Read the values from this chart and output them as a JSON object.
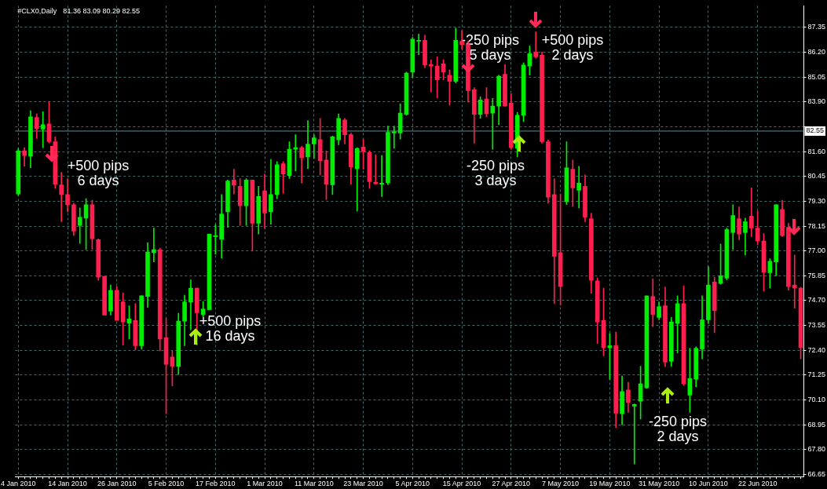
{
  "chart_data": {
    "type": "candlestick",
    "title": "#CLX0,Daily",
    "subtitle": "81.36 83.09 80.29 82.55",
    "categories": [
      "4 Jan 2010",
      null,
      null,
      null,
      null,
      null,
      null,
      null,
      "14 Jan 2010",
      null,
      null,
      null,
      null,
      null,
      null,
      null,
      "26 Jan 2010",
      null,
      null,
      null,
      null,
      null,
      null,
      null,
      "5 Feb 2010",
      null,
      null,
      null,
      null,
      null,
      null,
      null,
      "17 Feb 2010",
      null,
      null,
      null,
      null,
      null,
      null,
      null,
      "1 Mar 2010",
      null,
      null,
      null,
      null,
      null,
      null,
      null,
      "11 Mar 2010",
      null,
      null,
      null,
      null,
      null,
      null,
      null,
      "23 Mar 2010",
      null,
      null,
      null,
      null,
      null,
      null,
      null,
      "5 Apr 2010",
      null,
      null,
      null,
      null,
      null,
      null,
      null,
      "15 Apr 2010",
      null,
      null,
      null,
      null,
      null,
      null,
      null,
      "27 Apr 2010",
      null,
      null,
      null,
      null,
      null,
      null,
      null,
      "7 May 2010",
      null,
      null,
      null,
      null,
      null,
      null,
      null,
      "19 May 2010",
      null,
      null,
      null,
      null,
      null,
      null,
      null,
      "31 May 2010",
      null,
      null,
      null,
      null,
      null,
      null,
      null,
      "10 Jun 2010",
      null,
      null,
      null,
      null,
      null,
      null,
      null,
      "22 Jun 2010",
      null,
      null,
      null,
      null,
      null,
      null,
      null
    ],
    "ohlc": [
      [
        79.64,
        81.75,
        79.56,
        81.64
      ],
      [
        81.64,
        81.78,
        80.92,
        81.42
      ],
      [
        81.39,
        83.49,
        80.85,
        83.21
      ],
      [
        83.18,
        83.35,
        82.21,
        82.66
      ],
      [
        82.64,
        83.45,
        81.78,
        82.85
      ],
      [
        82.88,
        83.92,
        82.0,
        82.06
      ],
      [
        82.06,
        82.28,
        79.89,
        80.09
      ],
      [
        80.06,
        80.64,
        78.35,
        79.61
      ],
      [
        79.61,
        80.35,
        78.81,
        79.14
      ],
      [
        79.14,
        79.21,
        77.71,
        77.92
      ],
      [
        78.18,
        78.99,
        77.35,
        78.56
      ],
      [
        78.52,
        79.42,
        77.06,
        79.14
      ],
      [
        79.14,
        79.35,
        77.06,
        77.56
      ],
      [
        77.52,
        77.56,
        75.64,
        75.78
      ],
      [
        75.82,
        75.82,
        74.03,
        74.03
      ],
      [
        74.21,
        75.42,
        74.03,
        75.18
      ],
      [
        75.18,
        75.35,
        73.78,
        73.78
      ],
      [
        74.64,
        75.06,
        72.64,
        73.71
      ],
      [
        73.66,
        74.46,
        72.92,
        73.85
      ],
      [
        73.78,
        74.56,
        72.42,
        72.61
      ],
      [
        72.61,
        74.92,
        72.46,
        74.92
      ],
      [
        74.89,
        77.38,
        74.38,
        76.95
      ],
      [
        76.92,
        78.06,
        76.49,
        77.06
      ],
      [
        77.06,
        77.13,
        72.38,
        72.92
      ],
      [
        72.99,
        73.89,
        69.46,
        71.75
      ],
      [
        72.09,
        72.38,
        70.75,
        71.66
      ],
      [
        71.66,
        74.11,
        71.28,
        73.75
      ],
      [
        73.75,
        74.95,
        72.61,
        74.64
      ],
      [
        74.64,
        75.66,
        73.35,
        75.28
      ],
      [
        75.28,
        75.28,
        72.64,
        74.14
      ],
      [
        74.06,
        74.66,
        73.95,
        74.31
      ],
      [
        74.28,
        77.78,
        74.28,
        77.78
      ],
      [
        77.66,
        78.21,
        76.85,
        77.71
      ],
      [
        77.54,
        79.61,
        76.66,
        78.71
      ],
      [
        78.81,
        80.28,
        78.09,
        80.24
      ],
      [
        80.28,
        80.78,
        79.64,
        80.04
      ],
      [
        79.99,
        80.35,
        78.18,
        79.09
      ],
      [
        79.09,
        80.35,
        78.18,
        80.28
      ],
      [
        80.28,
        80.28,
        76.99,
        78.28
      ],
      [
        78.28,
        79.99,
        77.78,
        79.52
      ],
      [
        79.78,
        80.56,
        78.04,
        78.75
      ],
      [
        78.81,
        81.24,
        78.24,
        79.61
      ],
      [
        79.61,
        81.14,
        79.42,
        80.99
      ],
      [
        81.04,
        81.14,
        79.66,
        80.56
      ],
      [
        80.49,
        82.06,
        80.35,
        81.71
      ],
      [
        81.71,
        82.38,
        80.71,
        81.78
      ],
      [
        81.78,
        81.85,
        80.14,
        81.32
      ],
      [
        81.35,
        83.04,
        80.81,
        81.95
      ],
      [
        81.95,
        82.38,
        81.28,
        82.24
      ],
      [
        82.16,
        83.14,
        80.52,
        81.18
      ],
      [
        81.21,
        81.64,
        79.38,
        80.09
      ],
      [
        80.06,
        82.32,
        79.61,
        82.28
      ],
      [
        82.14,
        83.35,
        81.92,
        83.14
      ],
      [
        83.06,
        83.14,
        81.95,
        82.38
      ],
      [
        82.38,
        82.46,
        80.09,
        80.89
      ],
      [
        80.81,
        81.78,
        78.85,
        81.75
      ],
      [
        81.81,
        82.18,
        80.78,
        81.61
      ],
      [
        81.56,
        81.64,
        79.89,
        80.21
      ],
      [
        80.18,
        81.46,
        80.09,
        80.11
      ],
      [
        80.09,
        81.42,
        79.52,
        80.14
      ],
      [
        80.15,
        82.78,
        80.06,
        82.49
      ],
      [
        82.46,
        82.78,
        81.75,
        82.52
      ],
      [
        82.46,
        83.81,
        82.18,
        83.38
      ],
      [
        83.32,
        85.28,
        83.28,
        85.24
      ],
      [
        85.28,
        86.89,
        85.04,
        86.81
      ],
      [
        86.71,
        87.04,
        86.09,
        86.75
      ],
      [
        86.75,
        86.99,
        85.49,
        85.61
      ],
      [
        85.64,
        85.85,
        84.35,
        85.56
      ],
      [
        85.56,
        85.99,
        84.09,
        84.92
      ],
      [
        85.66,
        85.85,
        84.92,
        85.28
      ],
      [
        85.14,
        85.38,
        83.75,
        84.85
      ],
      [
        84.85,
        87.32,
        84.78,
        86.75
      ],
      [
        86.71,
        87.21,
        86.35,
        86.56
      ],
      [
        86.56,
        86.71,
        83.89,
        84.42
      ],
      [
        84.46,
        84.56,
        81.99,
        83.32
      ],
      [
        83.32,
        84.14,
        83.14,
        83.99
      ],
      [
        84.04,
        84.56,
        83.21,
        83.35
      ],
      [
        83.38,
        84.06,
        81.71,
        83.71
      ],
      [
        83.71,
        85.14,
        82.85,
        85.09
      ],
      [
        85.18,
        85.64,
        83.71,
        83.71
      ],
      [
        83.85,
        84.28,
        81.71,
        81.78
      ],
      [
        81.75,
        83.42,
        81.35,
        83.28
      ],
      [
        83.28,
        85.71,
        83.0,
        85.61
      ],
      [
        85.56,
        86.49,
        85.14,
        86.14
      ],
      [
        86.21,
        87.14,
        85.92,
        85.99
      ],
      [
        86.06,
        86.21,
        81.99,
        82.06
      ],
      [
        82.06,
        82.14,
        79.21,
        79.49
      ],
      [
        79.61,
        80.35,
        74.56,
        76.75
      ],
      [
        76.92,
        79.64,
        74.49,
        75.35
      ],
      [
        79.28,
        82.06,
        79.14,
        80.85
      ],
      [
        80.78,
        81.21,
        79.06,
        79.92
      ],
      [
        79.81,
        80.92,
        78.99,
        80.14
      ],
      [
        79.99,
        80.52,
        78.35,
        78.56
      ],
      [
        78.49,
        78.75,
        75.04,
        75.64
      ],
      [
        75.61,
        75.75,
        72.71,
        73.71
      ],
      [
        73.78,
        75.28,
        72.14,
        72.52
      ],
      [
        72.52,
        73.18,
        71.04,
        72.61
      ],
      [
        72.61,
        73.24,
        68.81,
        69.49
      ],
      [
        69.46,
        71.21,
        68.95,
        70.49
      ],
      [
        70.56,
        70.92,
        69.52,
        69.99
      ],
      [
        69.81,
        69.92,
        67.13,
        69.89
      ],
      [
        70.04,
        71.66,
        69.21,
        70.85
      ],
      [
        70.66,
        74.92,
        70.64,
        74.92
      ],
      [
        74.89,
        75.71,
        73.49,
        74.06
      ],
      [
        73.92,
        74.64,
        73.81,
        74.42
      ],
      [
        74.46,
        75.32,
        71.64,
        71.85
      ],
      [
        71.89,
        73.92,
        71.66,
        73.71
      ],
      [
        73.64,
        74.92,
        72.28,
        74.56
      ],
      [
        74.56,
        75.38,
        70.78,
        70.85
      ],
      [
        70.32,
        72.49,
        69.52,
        71.09
      ],
      [
        71.06,
        72.56,
        70.71,
        72.49
      ],
      [
        72.46,
        74.92,
        72.0,
        73.81
      ],
      [
        73.81,
        76.28,
        73.64,
        75.42
      ],
      [
        75.56,
        75.78,
        73.21,
        74.24
      ],
      [
        75.49,
        77.32,
        75.46,
        75.85
      ],
      [
        75.74,
        78.06,
        75.66,
        77.99
      ],
      [
        77.85,
        79.14,
        77.06,
        78.64
      ],
      [
        78.49,
        79.04,
        77.52,
        77.78
      ],
      [
        77.85,
        78.52,
        76.81,
        78.35
      ],
      [
        78.61,
        79.92,
        77.66,
        78.06
      ],
      [
        78.06,
        78.85,
        77.28,
        77.46
      ],
      [
        77.46,
        77.81,
        75.14,
        76.01
      ],
      [
        75.99,
        76.64,
        75.28,
        76.52
      ],
      [
        76.49,
        79.14,
        75.85,
        79.14
      ],
      [
        78.92,
        79.35,
        77.66,
        77.71
      ],
      [
        78.09,
        78.28,
        75.18,
        75.35
      ],
      [
        75.42,
        76.81,
        74.35,
        75.28
      ],
      [
        75.28,
        75.32,
        72.0,
        72.52
      ]
    ],
    "colors": [
      "#00ee00",
      "#ff1f4f",
      "#00ee00",
      "#ff1f4f",
      "#00ee00",
      "#ff1f4f",
      "#ff1f4f",
      "#ff1f4f",
      "#ff1f4f",
      "#ff1f4f",
      "#00ee00",
      "#00ee00",
      "#ff1f4f",
      "#ff1f4f",
      "#ff1f4f",
      "#00ee00",
      "#ff1f4f",
      "#ff1f4f",
      "#00ee00",
      "#ff1f4f",
      "#00ee00",
      "#00ee00",
      "#00ee00",
      "#ff1f4f",
      "#ff1f4f",
      "#ff1f4f",
      "#00ee00",
      "#00ee00",
      "#00ee00",
      "#ff1f4f",
      "#00ee00",
      "#00ee00",
      "#00ee00",
      "#00ee00",
      "#00ee00",
      "#ff1f4f",
      "#ff1f4f",
      "#00ee00",
      "#ff1f4f",
      "#00ee00",
      "#ff1f4f",
      "#00ee00",
      "#00ee00",
      "#ff1f4f",
      "#00ee00",
      "#00ee00",
      "#ff1f4f",
      "#00ee00",
      "#00ee00",
      "#ff1f4f",
      "#ff1f4f",
      "#00ee00",
      "#00ee00",
      "#ff1f4f",
      "#ff1f4f",
      "#00ee00",
      "#ff1f4f",
      "#ff1f4f",
      "#ff1f4f",
      "#00ee00",
      "#00ee00",
      "#00ee00",
      "#00ee00",
      "#00ee00",
      "#00ee00",
      "#00ee00",
      "#ff1f4f",
      "#ff1f4f",
      "#ff1f4f",
      "#ff1f4f",
      "#ff1f4f",
      "#00ee00",
      "#ff1f4f",
      "#ff1f4f",
      "#ff1f4f",
      "#00ee00",
      "#ff1f4f",
      "#00ee00",
      "#00ee00",
      "#ff1f4f",
      "#ff1f4f",
      "#00ee00",
      "#00ee00",
      "#00ee00",
      "#ff1f4f",
      "#ff1f4f",
      "#ff1f4f",
      "#ff1f4f",
      "#ff1f4f",
      "#00ee00",
      "#ff1f4f",
      "#00ee00",
      "#ff1f4f",
      "#ff1f4f",
      "#ff1f4f",
      "#ff1f4f",
      "#00ee00",
      "#ff1f4f",
      "#00ee00",
      "#ff1f4f",
      "#00ee00",
      "#00ee00",
      "#00ee00",
      "#ff1f4f",
      "#00ee00",
      "#ff1f4f",
      "#00ee00",
      "#00ee00",
      "#ff1f4f",
      "#00ee00",
      "#00ee00",
      "#00ee00",
      "#00ee00",
      "#ff1f4f",
      "#00ee00",
      "#00ee00",
      "#00ee00",
      "#ff1f4f",
      "#00ee00",
      "#ff1f4f",
      "#ff1f4f",
      "#ff1f4f",
      "#00ee00",
      "#00ee00",
      "#ff1f4f",
      "#ff1f4f",
      "#ff1f4f",
      "#ff1f4f"
    ],
    "ylim": [
      66.55,
      88.35
    ],
    "yticks": [
      87.35,
      {
        "value": 86.2,
        "label": "86.20"
      },
      85.05,
      {
        "value": 83.9,
        "label": "83.90"
      },
      {
        "value": 82.75,
        "label": null
      },
      {
        "value": 81.6,
        "label": "81.60"
      },
      80.45,
      {
        "value": 79.3,
        "label": "79.30"
      },
      78.15,
      {
        "value": 77.0,
        "label": "77.00"
      },
      75.85,
      {
        "value": 74.7,
        "label": "74.70"
      },
      73.55,
      {
        "value": 72.4,
        "label": "72.40"
      },
      71.25,
      {
        "value": 70.1,
        "label": "70.10"
      },
      68.95,
      {
        "value": 67.8,
        "label": "67.80"
      },
      66.65
    ],
    "grid": true,
    "ref_lines": [
      {
        "axis": "y",
        "value": 82.55,
        "label": "82.55",
        "color": "#5e8c8c"
      }
    ],
    "annotations": [
      "+500 pips\n6 days",
      "+500 pips\n16 days",
      "-250 pips\n5 days",
      "+500 pips\n2 days",
      "-250 pips\n3 days",
      "-250 pips\n2 days"
    ]
  }
}
